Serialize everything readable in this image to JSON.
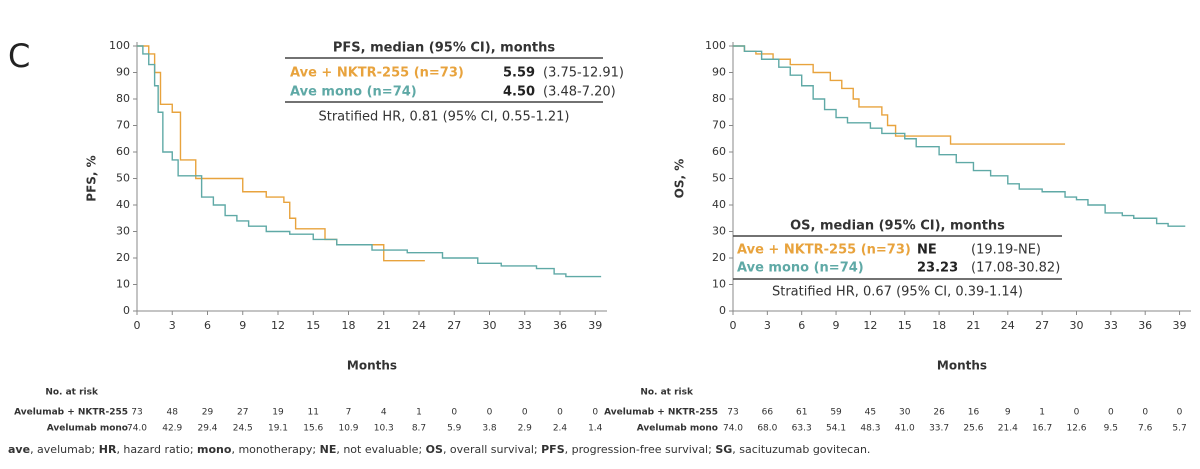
{
  "panel_label": "C",
  "chart_data": [
    {
      "type": "step",
      "ylabel": "PFS, %",
      "xlabel": "Months",
      "xlim": [
        0,
        40
      ],
      "xticks": [
        0,
        3,
        6,
        9,
        12,
        15,
        18,
        21,
        24,
        27,
        30,
        33,
        36,
        39
      ],
      "ylim": [
        0,
        100
      ],
      "yticks": [
        0,
        10,
        20,
        30,
        40,
        50,
        60,
        70,
        80,
        90,
        100
      ],
      "legend": {
        "title": "PFS, median (95% CI), months",
        "note": "Stratified HR, 0.81 (95% CI, 0.55-1.21)"
      },
      "series": [
        {
          "name": "Ave + NKTR-255 (n=73)",
          "color": "#e8a33d",
          "median": "5.59",
          "median_ci": "(3.75-12.91)",
          "x": [
            0,
            1,
            1.5,
            2,
            3,
            3.7,
            5,
            9,
            11,
            12.5,
            13,
            13.5,
            16,
            17,
            21,
            24.5
          ],
          "values": [
            100,
            97,
            90,
            78,
            75,
            57,
            50,
            45,
            43,
            41,
            35,
            31,
            27,
            25,
            19,
            19
          ]
        },
        {
          "name": "Ave mono (n=74)",
          "color": "#5fa9a6",
          "median": "4.50",
          "median_ci": "(3.48-7.20)",
          "x": [
            0,
            0.5,
            1,
            1.5,
            1.8,
            2.2,
            3,
            3.5,
            5.5,
            6.5,
            7.5,
            8.5,
            9.5,
            11,
            13,
            15,
            17,
            20,
            23,
            26,
            29,
            31,
            34,
            35.5,
            36.5,
            39.5
          ],
          "values": [
            100,
            97,
            93,
            85,
            75,
            60,
            57,
            51,
            43,
            40,
            36,
            34,
            32,
            30,
            29,
            27,
            25,
            23,
            22,
            20,
            18,
            17,
            16,
            14,
            13,
            13
          ]
        }
      ],
      "at_risk": {
        "title": "No. at risk",
        "rows": [
          {
            "name": "Avelumab + NKTR-255",
            "values": [
              73,
              48,
              29,
              27,
              19,
              11,
              7,
              4,
              1,
              0,
              0,
              0,
              0,
              0
            ]
          },
          {
            "name": "Avelumab mono",
            "values": [
              74,
              42.9,
              29.4,
              24.5,
              19.1,
              15.6,
              10.9,
              10.3,
              8.7,
              5.9,
              3.8,
              2.9,
              2.4,
              1.4
            ],
            "value_labels": [
              "74.0",
              "42.9",
              "29.4",
              "24.5",
              "19.1",
              "15.6",
              "10.9",
              "10.3",
              "8.7",
              "5.9",
              "3.8",
              "2.9",
              "2.4",
              "1.4"
            ]
          }
        ]
      }
    },
    {
      "type": "step",
      "ylabel": "OS, %",
      "xlabel": "Months",
      "xlim": [
        0,
        40
      ],
      "xticks": [
        0,
        3,
        6,
        9,
        12,
        15,
        18,
        21,
        24,
        27,
        30,
        33,
        36,
        39
      ],
      "ylim": [
        0,
        100
      ],
      "yticks": [
        0,
        10,
        20,
        30,
        40,
        50,
        60,
        70,
        80,
        90,
        100
      ],
      "legend": {
        "title": "OS, median (95% CI), months",
        "note": "Stratified HR, 0.67 (95% CI, 0.39-1.14)"
      },
      "series": [
        {
          "name": "Ave + NKTR-255 (n=73)",
          "color": "#e8a33d",
          "median": "NE",
          "median_ci": "(19.19-NE)",
          "x": [
            0,
            1,
            2,
            3.5,
            5,
            7,
            8.5,
            9.5,
            10.5,
            11,
            13,
            13.5,
            14.2,
            19,
            29
          ],
          "values": [
            100,
            98,
            97,
            95,
            93,
            90,
            87,
            84,
            80,
            77,
            74,
            70,
            66,
            63,
            63
          ]
        },
        {
          "name": "Ave mono (n=74)",
          "color": "#5fa9a6",
          "median": "23.23",
          "median_ci": "(17.08-30.82)",
          "x": [
            0,
            1,
            2.5,
            4,
            5,
            6,
            7,
            8,
            9,
            10,
            12,
            13,
            15,
            16,
            18,
            19.5,
            21,
            22.5,
            24,
            25,
            27,
            29,
            30,
            31,
            32.5,
            34,
            35,
            37,
            38,
            39.5
          ],
          "values": [
            100,
            98,
            95,
            92,
            89,
            85,
            80,
            76,
            73,
            71,
            69,
            67,
            65,
            62,
            59,
            56,
            53,
            51,
            48,
            46,
            45,
            43,
            42,
            40,
            37,
            36,
            35,
            33,
            32,
            32
          ]
        }
      ],
      "at_risk": {
        "title": "No. at risk",
        "rows": [
          {
            "name": "Avelumab + NKTR-255",
            "values": [
              73,
              66,
              61,
              59,
              45,
              30,
              26,
              16,
              9,
              1,
              0,
              0,
              0,
              0
            ]
          },
          {
            "name": "Avelumab mono",
            "values": [
              74,
              68,
              63.3,
              54.1,
              48.3,
              41,
              33.7,
              25.6,
              21.4,
              16.7,
              12.6,
              9.5,
              7.6,
              5.7
            ],
            "value_labels": [
              "74.0",
              "68.0",
              "63.3",
              "54.1",
              "48.3",
              "41.0",
              "33.7",
              "25.6",
              "21.4",
              "16.7",
              "12.6",
              "9.5",
              "7.6",
              "5.7"
            ]
          }
        ]
      }
    }
  ],
  "footnote": [
    {
      "term": "ave",
      "text": ", avelumab; "
    },
    {
      "term": "HR",
      "text": ", hazard ratio; "
    },
    {
      "term": "mono",
      "text": ", monotherapy; "
    },
    {
      "term": "NE",
      "text": ", not evaluable; "
    },
    {
      "term": "OS",
      "text": ", overall survival; "
    },
    {
      "term": "PFS",
      "text": ", progression-free survival; "
    },
    {
      "term": "SG",
      "text": ", sacituzumab govitecan."
    }
  ]
}
